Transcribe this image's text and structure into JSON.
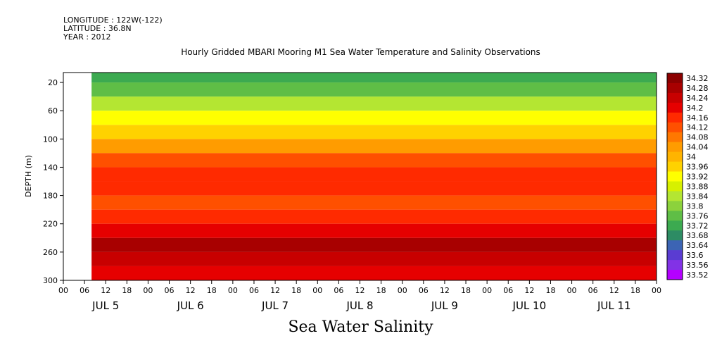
{
  "meta": {
    "longitude": "LONGITUDE : 122W(-122)",
    "latitude": "LATITUDE : 36.8N",
    "year": "YEAR : 2012"
  },
  "title": "Hourly Gridded MBARI Mooring M1 Sea Water Temperature and Salinity Observations",
  "bottom_title": "Sea Water Salinity",
  "chart_data": {
    "type": "heatmap",
    "title": "Hourly Gridded MBARI Mooring M1 Sea Water Temperature and Salinity Observations",
    "xlabel": "",
    "ylabel": "DEPTH (m)",
    "variable": "Sea Water Salinity",
    "x_hour_ticks": [
      "00",
      "06",
      "12",
      "18",
      "00",
      "06",
      "12",
      "18",
      "00",
      "06",
      "12",
      "18",
      "00",
      "06",
      "12",
      "18",
      "00",
      "06",
      "12",
      "18",
      "00",
      "06",
      "12",
      "18",
      "00",
      "06",
      "12",
      "18",
      "00"
    ],
    "x_day_labels": [
      "JUL  5",
      "JUL  6",
      "JUL  7",
      "JUL  8",
      "JUL  9",
      "JUL 10",
      "JUL 11"
    ],
    "x_range_hours": [
      0,
      168
    ],
    "data_start_hour": 8,
    "y_ticks": [
      20,
      60,
      100,
      140,
      180,
      220,
      260,
      300
    ],
    "y_range": [
      6,
      300
    ],
    "y_reversed": true,
    "colorbar_levels": [
      "34.32",
      "34.28",
      "34.24",
      "34.2",
      "34.16",
      "34.12",
      "34.08",
      "34.04",
      "34",
      "33.96",
      "33.92",
      "33.88",
      "33.84",
      "33.8",
      "33.76",
      "33.72",
      "33.68",
      "33.64",
      "33.6",
      "33.56",
      "33.52"
    ],
    "colorbar_colors": [
      "#8b0000",
      "#a80000",
      "#c80000",
      "#e60000",
      "#ff2a00",
      "#ff5000",
      "#ff7800",
      "#ff9c00",
      "#ffb400",
      "#ffd200",
      "#ffff00",
      "#d7f000",
      "#b4e632",
      "#8cd23c",
      "#5fbe46",
      "#3caa50",
      "#2d8c64",
      "#3c64b4",
      "#5a3cd2",
      "#8232e6",
      "#b400ff"
    ],
    "depth_profile": [
      {
        "depth": 10,
        "value": 33.72
      },
      {
        "depth": 30,
        "value": 33.76
      },
      {
        "depth": 50,
        "value": 33.84
      },
      {
        "depth": 70,
        "value": 33.92
      },
      {
        "depth": 90,
        "value": 33.96
      },
      {
        "depth": 110,
        "value": 34.04
      },
      {
        "depth": 130,
        "value": 34.12
      },
      {
        "depth": 150,
        "value": 34.16
      },
      {
        "depth": 170,
        "value": 34.16
      },
      {
        "depth": 190,
        "value": 34.12
      },
      {
        "depth": 210,
        "value": 34.16
      },
      {
        "depth": 230,
        "value": 34.2
      },
      {
        "depth": 250,
        "value": 34.28
      },
      {
        "depth": 270,
        "value": 34.24
      },
      {
        "depth": 290,
        "value": 34.2
      }
    ]
  }
}
